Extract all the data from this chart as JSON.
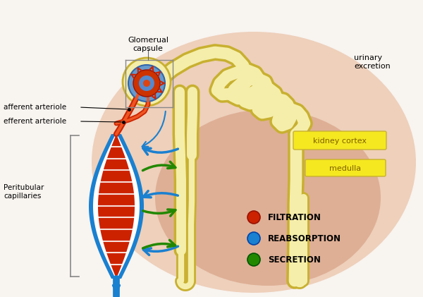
{
  "bg_color": "#f8f4f0",
  "tubule_fill": "#f5eeaa",
  "tubule_edge": "#c8b030",
  "cap_blue": "#1a80d0",
  "cap_red": "#cc2200",
  "arrow_blue": "#1a80d0",
  "arrow_green": "#228800",
  "arrow_red": "#cc2200",
  "bg_ellipse1_color": "#e8b898",
  "bg_ellipse2_color": "#d89070",
  "label_box_color": "#f5e820",
  "label_box_edge": "#c8b030",
  "texts": {
    "glom_capsule": "Glomerual\ncapsule",
    "urinary": "urinary\nexcretion",
    "afferent": "afferent arteriole",
    "efferent": "efferent arteriole",
    "peritubular": "Peritubular\ncapillaries",
    "kidney_cortex": "kidney cortex",
    "medulla": "medulla",
    "filtration": "FILTRATION",
    "reabsorption": "REABSORPTION",
    "secretion": "SECRETION"
  },
  "figsize": [
    6.0,
    4.21
  ],
  "dpi": 100
}
